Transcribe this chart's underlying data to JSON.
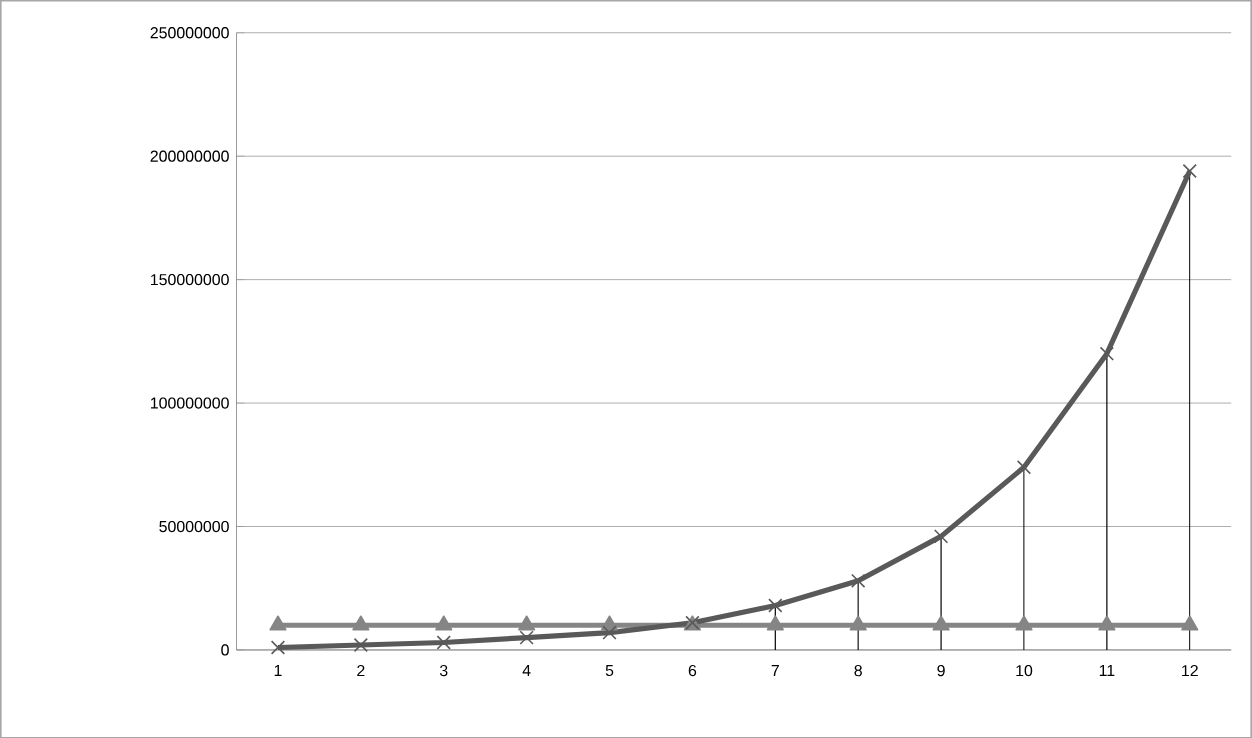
{
  "chart_data": {
    "type": "line",
    "categories": [
      "1",
      "2",
      "3",
      "4",
      "5",
      "6",
      "7",
      "8",
      "9",
      "10",
      "11",
      "12"
    ],
    "series": [
      {
        "color": "#595959",
        "marker": "cross",
        "values": [
          1000000,
          2000000,
          3000000,
          5000000,
          7000000,
          11000000,
          18000000,
          28000000,
          46000000,
          74000000,
          120000000,
          194000000
        ],
        "errors": [
          null,
          null,
          null,
          null,
          null,
          null,
          [
            0,
            18000000
          ],
          [
            0,
            28000000
          ],
          [
            0,
            46000000
          ],
          [
            0,
            74000000
          ],
          [
            0,
            120000000
          ],
          [
            0,
            194000000
          ]
        ]
      },
      {
        "color": "#858585",
        "marker": "triangle",
        "values": [
          10000000,
          10000000,
          10000000,
          10000000,
          10000000,
          10000000,
          10000000,
          10000000,
          10000000,
          10000000,
          10000000,
          10000000
        ]
      }
    ],
    "ylim": [
      0,
      250000000
    ],
    "yticks": [
      0,
      50000000,
      100000000,
      150000000,
      200000000,
      250000000
    ],
    "grid": "y",
    "line_style": "solid"
  }
}
